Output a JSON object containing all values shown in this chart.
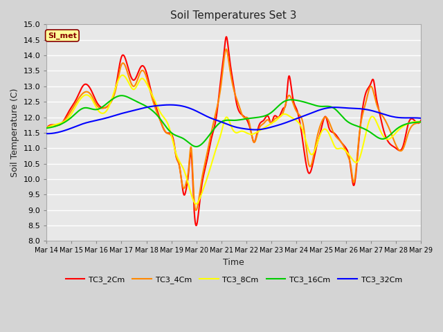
{
  "title": "Soil Temperatures Set 3",
  "xlabel": "Time",
  "ylabel": "Soil Temperature (C)",
  "ylim": [
    8.0,
    15.0
  ],
  "yticks": [
    8.0,
    8.5,
    9.0,
    9.5,
    10.0,
    10.5,
    11.0,
    11.5,
    12.0,
    12.5,
    13.0,
    13.5,
    14.0,
    14.5,
    15.0
  ],
  "colors": {
    "TC3_2Cm": "#ff0000",
    "TC3_4Cm": "#ff8800",
    "TC3_8Cm": "#ffff00",
    "TC3_16Cm": "#00cc00",
    "TC3_32Cm": "#0000ff"
  },
  "fig_bg": "#d4d4d4",
  "plot_bg": "#e8e8e8",
  "annotation_text": "SI_met",
  "annotation_bg": "#ffff99",
  "annotation_border": "#880000",
  "xtick_labels": [
    "Mar 14",
    "Mar 15",
    "Mar 16",
    "Mar 17",
    "Mar 18",
    "Mar 19",
    "Mar 20",
    "Mar 21",
    "Mar 22",
    "Mar 23",
    "Mar 24",
    "Mar 25",
    "Mar 26",
    "Mar 27",
    "Mar 28",
    "Mar 29"
  ],
  "tc3_2cm_x": [
    0,
    0.3,
    0.6,
    0.9,
    1.2,
    1.5,
    1.8,
    2.0,
    2.3,
    2.5,
    2.8,
    3.0,
    3.3,
    3.5,
    3.8,
    4.0,
    4.2,
    4.4,
    4.6,
    4.8,
    5.0,
    5.1,
    5.2,
    5.3,
    5.4,
    5.5,
    5.6,
    5.7,
    5.8,
    5.9,
    6.0,
    6.1,
    6.2,
    6.4,
    6.6,
    6.8,
    7.0,
    7.1,
    7.2,
    7.3,
    7.5,
    7.6,
    7.8,
    8.0,
    8.2,
    8.3,
    8.5,
    8.7,
    8.9,
    9.0,
    9.1,
    9.3,
    9.5,
    9.6,
    9.7,
    9.8,
    9.9,
    10.0,
    10.2,
    10.5,
    10.8,
    11.0,
    11.2,
    11.3,
    11.5,
    11.8,
    12.0,
    12.1,
    12.2,
    12.3,
    12.5,
    12.8,
    13.0,
    13.1,
    13.2,
    13.3,
    13.5,
    13.7,
    14.0,
    14.3,
    14.5,
    14.8,
    15.0
  ],
  "tc3_2cm_y": [
    11.65,
    11.75,
    11.8,
    12.2,
    12.6,
    13.05,
    12.85,
    12.5,
    12.3,
    12.4,
    13.1,
    13.95,
    13.5,
    13.2,
    13.65,
    13.45,
    12.8,
    12.3,
    11.8,
    11.5,
    11.45,
    11.2,
    10.7,
    10.5,
    10.0,
    9.5,
    9.7,
    10.3,
    10.8,
    9.2,
    8.5,
    9.0,
    9.7,
    10.5,
    11.3,
    12.0,
    13.35,
    14.0,
    14.6,
    14.1,
    13.0,
    12.5,
    12.1,
    11.95,
    11.5,
    11.2,
    11.7,
    11.9,
    12.0,
    11.8,
    12.0,
    12.0,
    12.3,
    12.5,
    13.3,
    13.0,
    12.5,
    12.3,
    11.6,
    10.2,
    11.0,
    11.6,
    12.0,
    11.7,
    11.5,
    11.2,
    11.0,
    10.8,
    10.3,
    9.8,
    11.1,
    12.8,
    13.1,
    13.2,
    12.7,
    12.3,
    11.6,
    11.2,
    11.0,
    11.1,
    11.8,
    11.85,
    11.9
  ],
  "tc3_4cm_x": [
    0,
    0.3,
    0.6,
    0.9,
    1.2,
    1.5,
    1.8,
    2.0,
    2.3,
    2.5,
    2.8,
    3.0,
    3.3,
    3.5,
    3.8,
    4.0,
    4.2,
    4.4,
    4.6,
    4.8,
    5.0,
    5.1,
    5.2,
    5.3,
    5.4,
    5.5,
    5.6,
    5.7,
    5.8,
    5.9,
    6.0,
    6.2,
    6.4,
    6.6,
    6.8,
    7.0,
    7.1,
    7.2,
    7.3,
    7.5,
    7.7,
    7.9,
    8.1,
    8.3,
    8.5,
    8.7,
    8.9,
    9.0,
    9.1,
    9.3,
    9.5,
    9.7,
    9.9,
    10.1,
    10.3,
    10.5,
    10.8,
    11.0,
    11.2,
    11.5,
    11.8,
    12.0,
    12.1,
    12.2,
    12.3,
    12.5,
    12.8,
    13.0,
    13.2,
    13.5,
    13.8,
    14.0,
    14.3,
    14.5,
    14.8,
    15.0
  ],
  "tc3_4cm_y": [
    11.65,
    11.75,
    11.82,
    12.1,
    12.5,
    12.8,
    12.7,
    12.4,
    12.3,
    12.4,
    13.0,
    13.7,
    13.3,
    13.0,
    13.5,
    13.3,
    12.7,
    12.2,
    11.8,
    11.5,
    11.4,
    11.15,
    10.7,
    10.5,
    10.0,
    9.7,
    9.9,
    10.4,
    11.0,
    9.5,
    9.0,
    9.9,
    10.7,
    11.5,
    12.2,
    13.1,
    13.8,
    14.2,
    13.8,
    12.9,
    12.4,
    12.0,
    11.9,
    11.2,
    11.6,
    11.8,
    11.9,
    11.8,
    11.9,
    12.0,
    12.2,
    12.7,
    12.4,
    12.1,
    11.7,
    10.5,
    11.2,
    11.8,
    12.0,
    11.5,
    11.2,
    10.9,
    10.7,
    10.4,
    9.9,
    11.2,
    12.5,
    13.0,
    12.5,
    12.0,
    11.5,
    11.1,
    11.0,
    11.5,
    11.8,
    11.85
  ],
  "tc3_8cm_x": [
    0,
    0.3,
    0.6,
    0.9,
    1.2,
    1.5,
    1.8,
    2.0,
    2.5,
    3.0,
    3.3,
    3.5,
    3.8,
    4.0,
    4.3,
    4.6,
    4.9,
    5.2,
    5.5,
    5.8,
    6.0,
    6.2,
    6.5,
    6.8,
    7.0,
    7.2,
    7.4,
    7.6,
    7.8,
    8.0,
    8.2,
    8.5,
    8.8,
    9.0,
    9.2,
    9.5,
    9.8,
    10.0,
    10.3,
    10.6,
    11.0,
    11.3,
    11.6,
    11.8,
    12.0,
    12.2,
    12.5,
    12.8,
    13.0,
    13.3,
    13.6,
    14.0,
    14.5,
    15.0
  ],
  "tc3_8cm_y": [
    11.65,
    11.75,
    11.82,
    12.0,
    12.4,
    12.7,
    12.6,
    12.3,
    12.35,
    13.35,
    13.1,
    12.9,
    13.25,
    13.1,
    12.6,
    12.1,
    11.7,
    10.8,
    10.3,
    9.5,
    9.2,
    9.5,
    10.2,
    11.0,
    11.5,
    12.0,
    11.7,
    11.5,
    11.55,
    11.5,
    11.45,
    11.55,
    11.7,
    11.8,
    11.9,
    12.1,
    12.0,
    11.9,
    11.5,
    10.8,
    11.5,
    11.5,
    11.0,
    11.0,
    10.9,
    10.7,
    10.6,
    11.5,
    12.0,
    11.7,
    11.3,
    11.5,
    11.8,
    11.85
  ],
  "tc3_16cm_x": [
    0,
    0.5,
    1.0,
    1.5,
    2.0,
    2.5,
    3.0,
    3.5,
    4.0,
    4.5,
    5.0,
    5.5,
    6.0,
    6.5,
    7.0,
    7.5,
    8.0,
    8.5,
    9.0,
    9.5,
    10.0,
    10.5,
    11.0,
    11.5,
    12.0,
    12.5,
    13.0,
    13.5,
    14.0,
    14.5,
    15.0
  ],
  "tc3_16cm_y": [
    11.65,
    11.75,
    12.0,
    12.3,
    12.25,
    12.5,
    12.7,
    12.55,
    12.35,
    12.0,
    11.5,
    11.3,
    11.05,
    11.4,
    11.85,
    11.9,
    11.95,
    12.0,
    12.15,
    12.5,
    12.55,
    12.45,
    12.35,
    12.3,
    11.9,
    11.7,
    11.5,
    11.3,
    11.6,
    11.8,
    11.85
  ],
  "tc3_32cm_x": [
    0,
    0.5,
    1.0,
    1.5,
    2.0,
    2.5,
    3.0,
    3.5,
    4.0,
    4.5,
    5.0,
    5.5,
    6.0,
    6.5,
    7.0,
    7.5,
    8.0,
    8.5,
    9.0,
    9.5,
    10.0,
    10.5,
    11.0,
    11.5,
    12.0,
    12.5,
    13.0,
    13.5,
    14.0,
    14.5,
    15.0
  ],
  "tc3_32cm_y": [
    11.47,
    11.52,
    11.65,
    11.8,
    11.9,
    12.0,
    12.12,
    12.22,
    12.32,
    12.38,
    12.4,
    12.35,
    12.2,
    12.0,
    11.85,
    11.7,
    11.62,
    11.6,
    11.68,
    11.8,
    11.95,
    12.1,
    12.25,
    12.32,
    12.3,
    12.28,
    12.22,
    12.1,
    12.0,
    11.98,
    11.97
  ]
}
